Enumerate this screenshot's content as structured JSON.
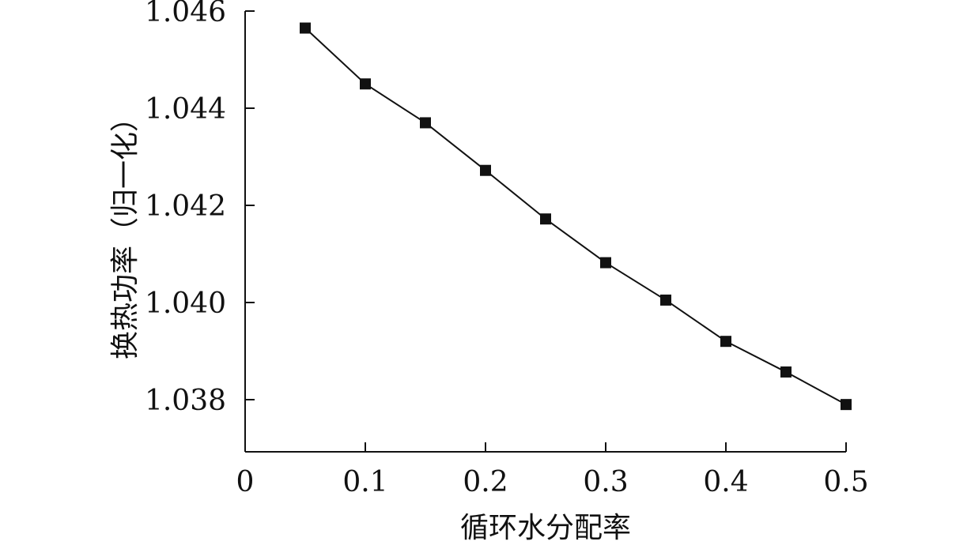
{
  "chart_data": {
    "type": "line",
    "title": "",
    "xlabel": "循环水分配率",
    "ylabel": "换热功率（归一化）",
    "xlim": [
      0,
      0.5
    ],
    "ylim": [
      1.037,
      1.046
    ],
    "x_ticks": [
      0,
      0.1,
      0.2,
      0.3,
      0.4,
      0.5
    ],
    "x_tick_labels": [
      "0",
      "0.1",
      "0.2",
      "0.3",
      "0.4",
      "0.5"
    ],
    "y_ticks": [
      1.038,
      1.04,
      1.042,
      1.044,
      1.046
    ],
    "y_tick_labels": [
      "1.038",
      "1.040",
      "1.042",
      "1.044",
      "1.046"
    ],
    "grid": false,
    "marker": "square",
    "colors": {
      "line": "#111111",
      "marker": "#111111"
    },
    "series": [
      {
        "x": [
          0.05,
          0.1,
          0.15,
          0.2,
          0.25,
          0.3,
          0.35,
          0.4,
          0.45,
          0.5
        ],
        "values": [
          1.04565,
          1.0445,
          1.0437,
          1.04272,
          1.04172,
          1.04082,
          1.04005,
          1.0392,
          1.03857,
          1.0379
        ]
      }
    ]
  }
}
